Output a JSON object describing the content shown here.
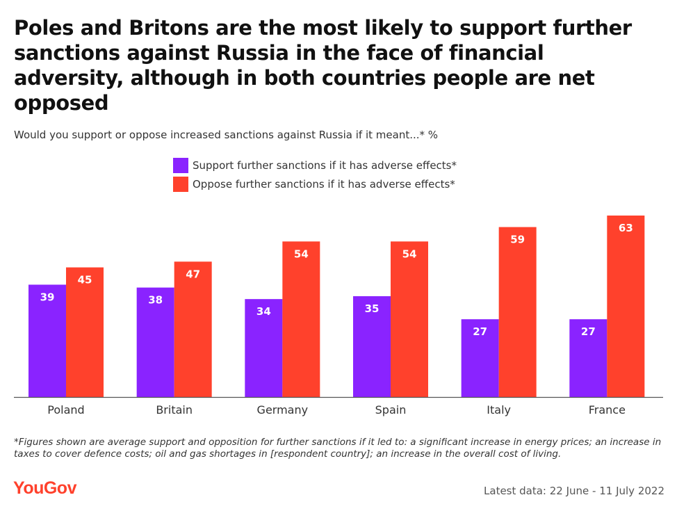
{
  "title": "Poles and Britons are the most likely to support further sanctions against Russia in the face of financial adversity, although in both countries people are net opposed",
  "subtitle": "Would you support or oppose increased sanctions against Russia if it meant...* %",
  "legend": {
    "support_label": "Support further sanctions if it has adverse effects*",
    "oppose_label": "Oppose further sanctions if it has adverse effects*"
  },
  "colors": {
    "support": "#8a23ff",
    "oppose": "#ff412c",
    "axis": "#555555",
    "label_on_bar": "#ffffff",
    "brand": "#ff412c"
  },
  "chart_data": {
    "type": "bar",
    "categories": [
      "Poland",
      "Britain",
      "Germany",
      "Spain",
      "Italy",
      "France"
    ],
    "series": [
      {
        "name": "Support further sanctions if it has adverse effects*",
        "values": [
          39,
          38,
          34,
          35,
          27,
          27
        ]
      },
      {
        "name": "Oppose further sanctions if it has adverse effects*",
        "values": [
          45,
          47,
          54,
          54,
          59,
          63
        ]
      }
    ],
    "title": "Poles and Britons are the most likely to support further sanctions against Russia in the face of financial adversity, although in both countries people are net opposed",
    "subtitle": "Would you support or oppose increased sanctions against Russia if it meant...* %",
    "xlabel": "",
    "ylabel": "",
    "ylim": [
      0,
      63
    ],
    "grid": false,
    "legend_position": "top-center",
    "data_labels": true
  },
  "footnote": "*Figures shown are average support and opposition for further sanctions if it led to: a significant increase in energy prices; an increase in taxes to cover defence costs; oil and gas shortages in [respondent country]; an increase in the overall cost of living.",
  "brand": "YouGov",
  "latest_data": "Latest data: 22 June - 11 July 2022"
}
